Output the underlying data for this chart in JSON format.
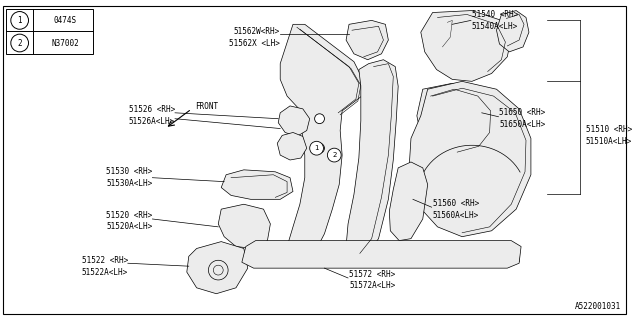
{
  "bg_color": "#ffffff",
  "lc": "#000000",
  "legend": [
    {
      "num": "1",
      "code": "0474S"
    },
    {
      "num": "2",
      "code": "N37002"
    }
  ],
  "footer": "A522001031",
  "fs": 5.5
}
